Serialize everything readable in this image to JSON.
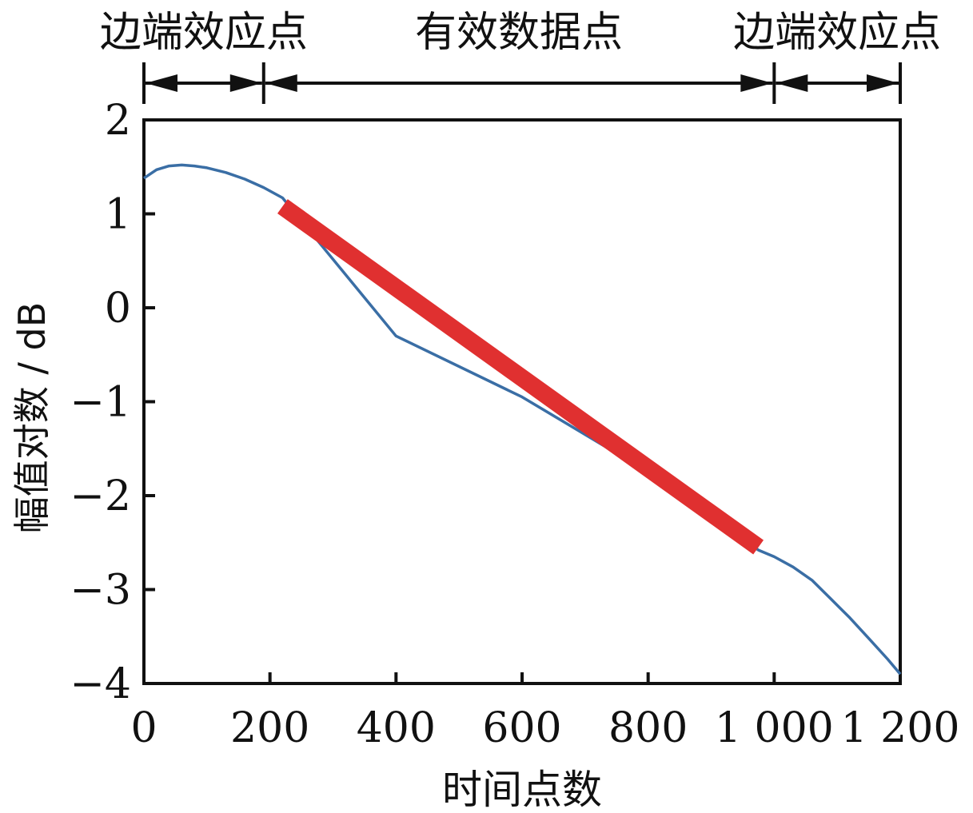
{
  "chart_data": {
    "type": "line",
    "title": "",
    "xlabel": "时间点数",
    "ylabel": "幅值对数 / dB",
    "xlim": [
      0,
      1200
    ],
    "ylim": [
      -4,
      2
    ],
    "grid": false,
    "x_ticks": [
      0,
      200,
      400,
      600,
      800,
      1000,
      1200
    ],
    "x_tick_labels": [
      "0",
      "200",
      "400",
      "600",
      "800",
      "1 000",
      "1 200"
    ],
    "y_ticks": [
      2,
      1,
      0,
      -1,
      -2,
      -3,
      -4
    ],
    "y_tick_labels": [
      "2",
      "1",
      "0",
      "−1",
      "−2",
      "−3",
      "−4"
    ],
    "colors": {
      "curve": "#3a6ea5",
      "highlight": "#e03030",
      "axis": "#111111"
    },
    "series": [
      {
        "style": "thin-line",
        "x": [
          0,
          20,
          40,
          60,
          80,
          100,
          130,
          160,
          190,
          220,
          400,
          600,
          800,
          975,
          1000,
          1030,
          1060,
          1090,
          1120,
          1150,
          1180,
          1200
        ],
        "y": [
          1.38,
          1.47,
          1.51,
          1.52,
          1.51,
          1.49,
          1.44,
          1.37,
          1.28,
          1.17,
          -0.3,
          -0.95,
          -1.75,
          -2.58,
          -2.65,
          -2.76,
          -2.9,
          -3.1,
          -3.3,
          -3.52,
          -3.74,
          -3.9
        ]
      },
      {
        "style": "thick-line",
        "x": [
          220,
          975
        ],
        "y": [
          1.08,
          -2.55
        ]
      }
    ],
    "annotations": [
      {
        "text": "边端效应点",
        "x_range": [
          0,
          190
        ]
      },
      {
        "text": "有效数据点",
        "x_range": [
          190,
          1000
        ]
      },
      {
        "text": "边端效应点",
        "x_range": [
          1000,
          1200
        ]
      }
    ]
  }
}
